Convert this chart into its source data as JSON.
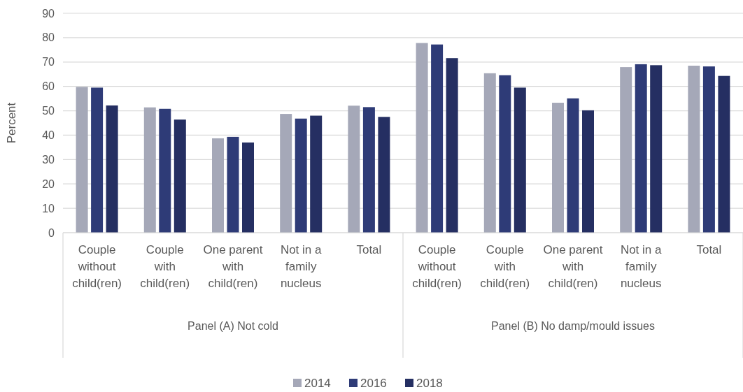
{
  "chart_data": {
    "type": "bar",
    "ylabel": "Percent",
    "categories": [
      "Couple without child(ren)",
      "Couple with child(ren)",
      "One parent with child(ren)",
      "Not in a family nucleus",
      "Total",
      "Couple without child(ren)",
      "Couple with child(ren)",
      "One parent with child(ren)",
      "Not in a family nucleus",
      "Total"
    ],
    "series": [
      {
        "name": "2014",
        "color": "#a5a8b8",
        "values": [
          59.8,
          51.4,
          38.7,
          48.7,
          52.1,
          77.8,
          65.4,
          53.3,
          67.9,
          68.5
        ]
      },
      {
        "name": "2016",
        "color": "#2e3b77",
        "values": [
          59.5,
          50.8,
          39.3,
          46.8,
          51.5,
          77.2,
          64.6,
          55.1,
          69.1,
          68.2
        ]
      },
      {
        "name": "2018",
        "color": "#252f62",
        "values": [
          52.2,
          46.4,
          37.0,
          48.0,
          47.5,
          71.6,
          59.5,
          50.2,
          68.7,
          64.3
        ]
      }
    ],
    "annotations": [
      "Panel (A) Not cold",
      "Panel (B) No damp/mould issues"
    ],
    "ylim": [
      0,
      90
    ],
    "yticks": [
      0,
      10,
      20,
      30,
      40,
      50,
      60,
      70,
      80,
      90
    ],
    "grid": "y",
    "legend": "bottom"
  }
}
